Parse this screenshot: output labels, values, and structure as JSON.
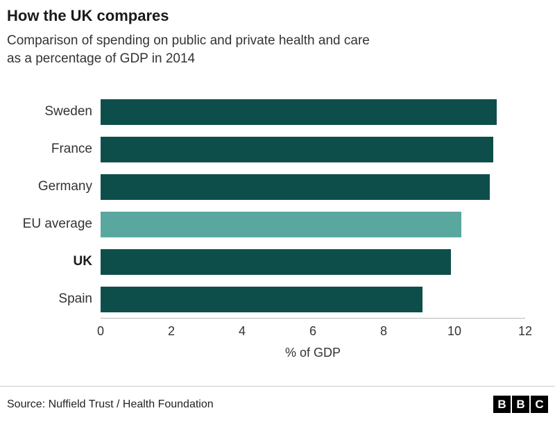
{
  "title": "How the UK compares",
  "subtitle": "Comparison of spending on public and private health and care\nas a percentage of GDP in 2014",
  "chart_data": {
    "type": "bar",
    "orientation": "horizontal",
    "categories": [
      "Sweden",
      "France",
      "Germany",
      "EU average",
      "UK",
      "Spain"
    ],
    "values": [
      11.2,
      11.1,
      11.0,
      10.2,
      9.9,
      9.1
    ],
    "bold_categories": [
      "UK"
    ],
    "highlight_category": "EU average",
    "bar_color": "#0e4e4a",
    "highlight_color": "#5aa7a0",
    "title": "How the UK compares",
    "xlabel": "% of GDP",
    "ylabel": "",
    "xlim": [
      0,
      12
    ],
    "xticks": [
      0,
      2,
      4,
      6,
      8,
      10,
      12
    ],
    "grid": "off",
    "legend": "none"
  },
  "footer": {
    "source": "Source: Nuffield Trust / Health Foundation",
    "bbc": [
      "B",
      "B",
      "C"
    ]
  }
}
